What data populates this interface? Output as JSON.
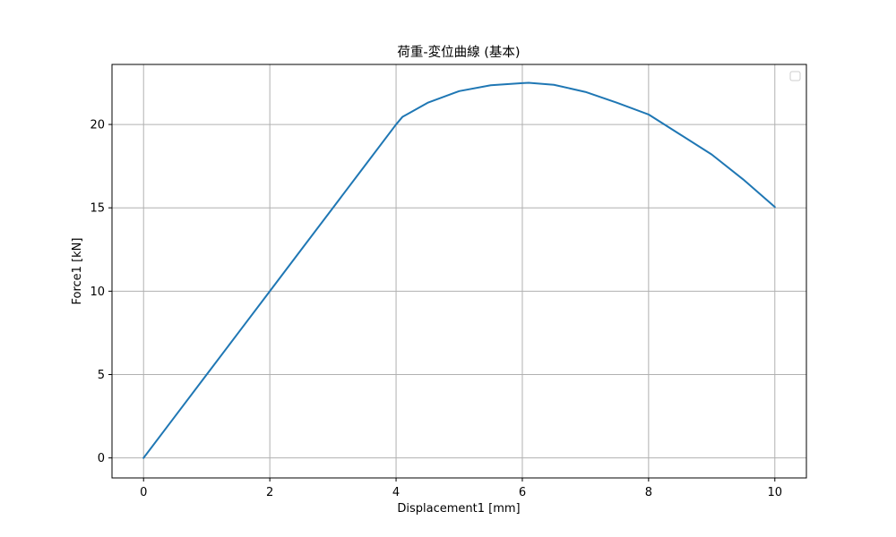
{
  "chart_data": {
    "type": "line",
    "title": "荷重-変位曲線 (基本)",
    "xlabel": "Displacement1 [mm]",
    "ylabel": "Force1 [kN]",
    "xlim": [
      -0.5,
      10.5
    ],
    "ylim": [
      -1.2,
      23.6
    ],
    "xticks": [
      0,
      2,
      4,
      6,
      8,
      10
    ],
    "yticks": [
      0,
      5,
      10,
      15,
      20
    ],
    "grid": true,
    "legend": "top-right",
    "series": [
      {
        "color": "#1f77b4",
        "x": [
          0,
          0.5,
          1.0,
          1.5,
          2.0,
          2.5,
          3.0,
          3.5,
          4.0,
          4.1,
          4.5,
          5.0,
          5.5,
          6.0,
          6.1,
          6.5,
          7.0,
          7.5,
          8.0,
          8.5,
          9.0,
          9.5,
          10.0
        ],
        "y": [
          0,
          2.5,
          5.0,
          7.5,
          10.0,
          12.5,
          15.0,
          17.5,
          20.0,
          20.45,
          21.3,
          22.0,
          22.35,
          22.48,
          22.5,
          22.38,
          21.95,
          21.3,
          20.6,
          19.4,
          18.2,
          16.7,
          15.05
        ]
      }
    ]
  }
}
